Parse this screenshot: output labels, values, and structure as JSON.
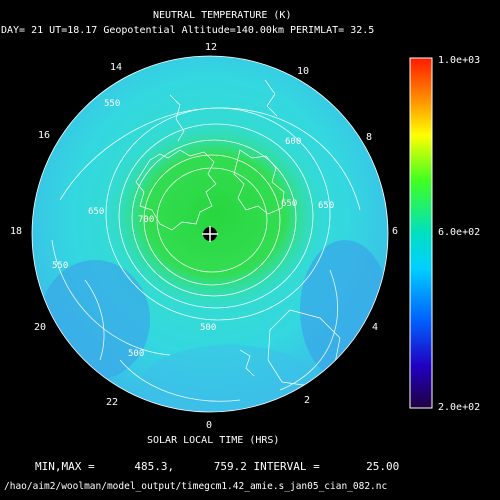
{
  "header": {
    "title": "NEUTRAL TEMPERATURE (K)",
    "subtitle": "DAY= 21 UT=18.17 Geopotential Altitude=140.00km PERIMLAT= 32.5"
  },
  "map": {
    "projection": "polar",
    "perimeter_latitude": 32.5,
    "hour_labels": [
      "12",
      "10",
      "8",
      "6",
      "4",
      "2",
      "0",
      "22",
      "20",
      "18",
      "16",
      "14"
    ],
    "contour_labels": [
      "550",
      "650",
      "700",
      "650",
      "600",
      "550",
      "650",
      "500",
      "500"
    ],
    "axis_label": "SOLAR LOCAL TIME (HRS)"
  },
  "colorbar": {
    "max_label": "1.0e+03",
    "mid_label": "6.0e+02",
    "min_label": "2.0e+02",
    "min": 200,
    "max": 1000
  },
  "footer": {
    "stats": "MIN,MAX =      485.3,      759.2 INTERVAL =       25.00",
    "path": "/hao/aim2/woolman/model_output/timegcm1.42_amie.s_jan05_cian_082.nc"
  },
  "colors": {
    "background": "#000000",
    "text": "#ffffff",
    "green": "#27d63f",
    "cyan": "#2fe0e0",
    "blue": "#3aa7e8"
  }
}
